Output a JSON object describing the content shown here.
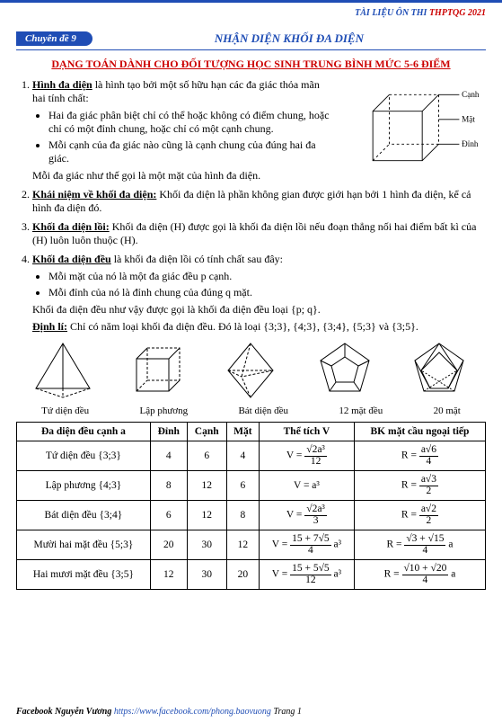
{
  "header": {
    "label_blue": "TÀI LIỆU ÔN THI ",
    "label_red": "THPTQG 2021"
  },
  "badge": "Chuyên đề 9",
  "topic": "NHẬN DIỆN KHỐI ĐA DIỆN",
  "subheading": "DẠNG TOÁN DÀNH CHO ĐỐI TƯỢNG HỌC SINH TRUNG BÌNH MỨC 5-6 ĐIỂM",
  "cube": {
    "edge": "Cạnh",
    "face": "Mặt",
    "vertex": "Đỉnh"
  },
  "s1": {
    "lead": "Hình đa diện",
    "rest": " là hình tạo bởi một số hữu hạn các đa giác thỏa mãn hai tính chất:",
    "b1": "Hai đa giác phân biệt chỉ có thể hoặc không có điểm chung, hoặc chỉ có một đỉnh chung, hoặc chỉ có một cạnh chung.",
    "b2": "Mỗi cạnh của đa giác nào cũng là cạnh chung của đúng hai đa giác.",
    "tail": "Mỗi đa giác như thế gọi là một mặt của hình đa diện."
  },
  "s2": {
    "lead": "Khái niệm về khối đa diện:",
    "rest": " Khối đa diện là phần không gian được giới hạn bởi 1 hình đa diện, kể cả hình đa diện đó."
  },
  "s3": {
    "lead": "Khối đa diện lồi:",
    "rest": " Khối đa diện (H) được gọi là khối đa diện lồi nếu đoạn thẳng nối hai điểm bất kì của (H) luôn luôn thuộc (H)."
  },
  "s4": {
    "lead": "Khối đa diện đều",
    "rest": " là khối đa diện lồi có tính chất sau đây:",
    "b1": "Mỗi mặt của nó là một đa giác đều p cạnh.",
    "b2": "Mỗi đỉnh của nó là đỉnh chung của đúng q mặt.",
    "out1": "Khối đa diện đều như vậy được gọi là khối đa diện đều loại {p; q}.",
    "dl_lead": "Định lí:",
    "dl_rest": " Chỉ có năm loại khối đa diện đều. Đó là loại {3;3}, {4;3}, {3;4}, {5;3} và {3;5}."
  },
  "shape_labels": {
    "a": "Tứ diện đều",
    "b": "Lập phương",
    "c": "Bát diện đều",
    "d": "12 mặt đều",
    "e": "20 mặt"
  },
  "table": {
    "headers": {
      "c1": "Đa diện đều cạnh a",
      "c2": "Đỉnh",
      "c3": "Cạnh",
      "c4": "Mặt",
      "c5": "Thể tích V",
      "c6": "BK mặt cầu ngoại tiếp"
    },
    "rows": [
      {
        "name": "Tứ diện đều {3;3}",
        "v": "4",
        "e": "6",
        "f": "4",
        "vol_num": "√2a³",
        "vol_den": "12",
        "r_num": "a√6",
        "r_den": "4"
      },
      {
        "name": "Lập phương {4;3}",
        "v": "8",
        "e": "12",
        "f": "6",
        "vol": "V = a³",
        "r_num": "a√3",
        "r_den": "2"
      },
      {
        "name": "Bát diện đều {3;4}",
        "v": "6",
        "e": "12",
        "f": "8",
        "vol_num": "√2a³",
        "vol_den": "3",
        "r_num": "a√2",
        "r_den": "2"
      },
      {
        "name": "Mười hai mặt đều {5;3}",
        "v": "20",
        "e": "30",
        "f": "12",
        "vol_num": "15 + 7√5",
        "vol_den": "4",
        "vol_suffix": " a³",
        "r_num": "√3 + √15",
        "r_den": "4",
        "r_suffix": " a"
      },
      {
        "name": "Hai mươi mặt đều {3;5}",
        "v": "12",
        "e": "30",
        "f": "20",
        "vol_num": "15 + 5√5",
        "vol_den": "12",
        "vol_suffix": " a³",
        "r_num": "√10 + √20",
        "r_den": "4",
        "r_suffix": " a"
      }
    ]
  },
  "footer": {
    "left_b": "Facebook Nguyễn Vương ",
    "link": "https://www.facebook.com/phong.baovuong",
    "right": " Trang 1"
  }
}
